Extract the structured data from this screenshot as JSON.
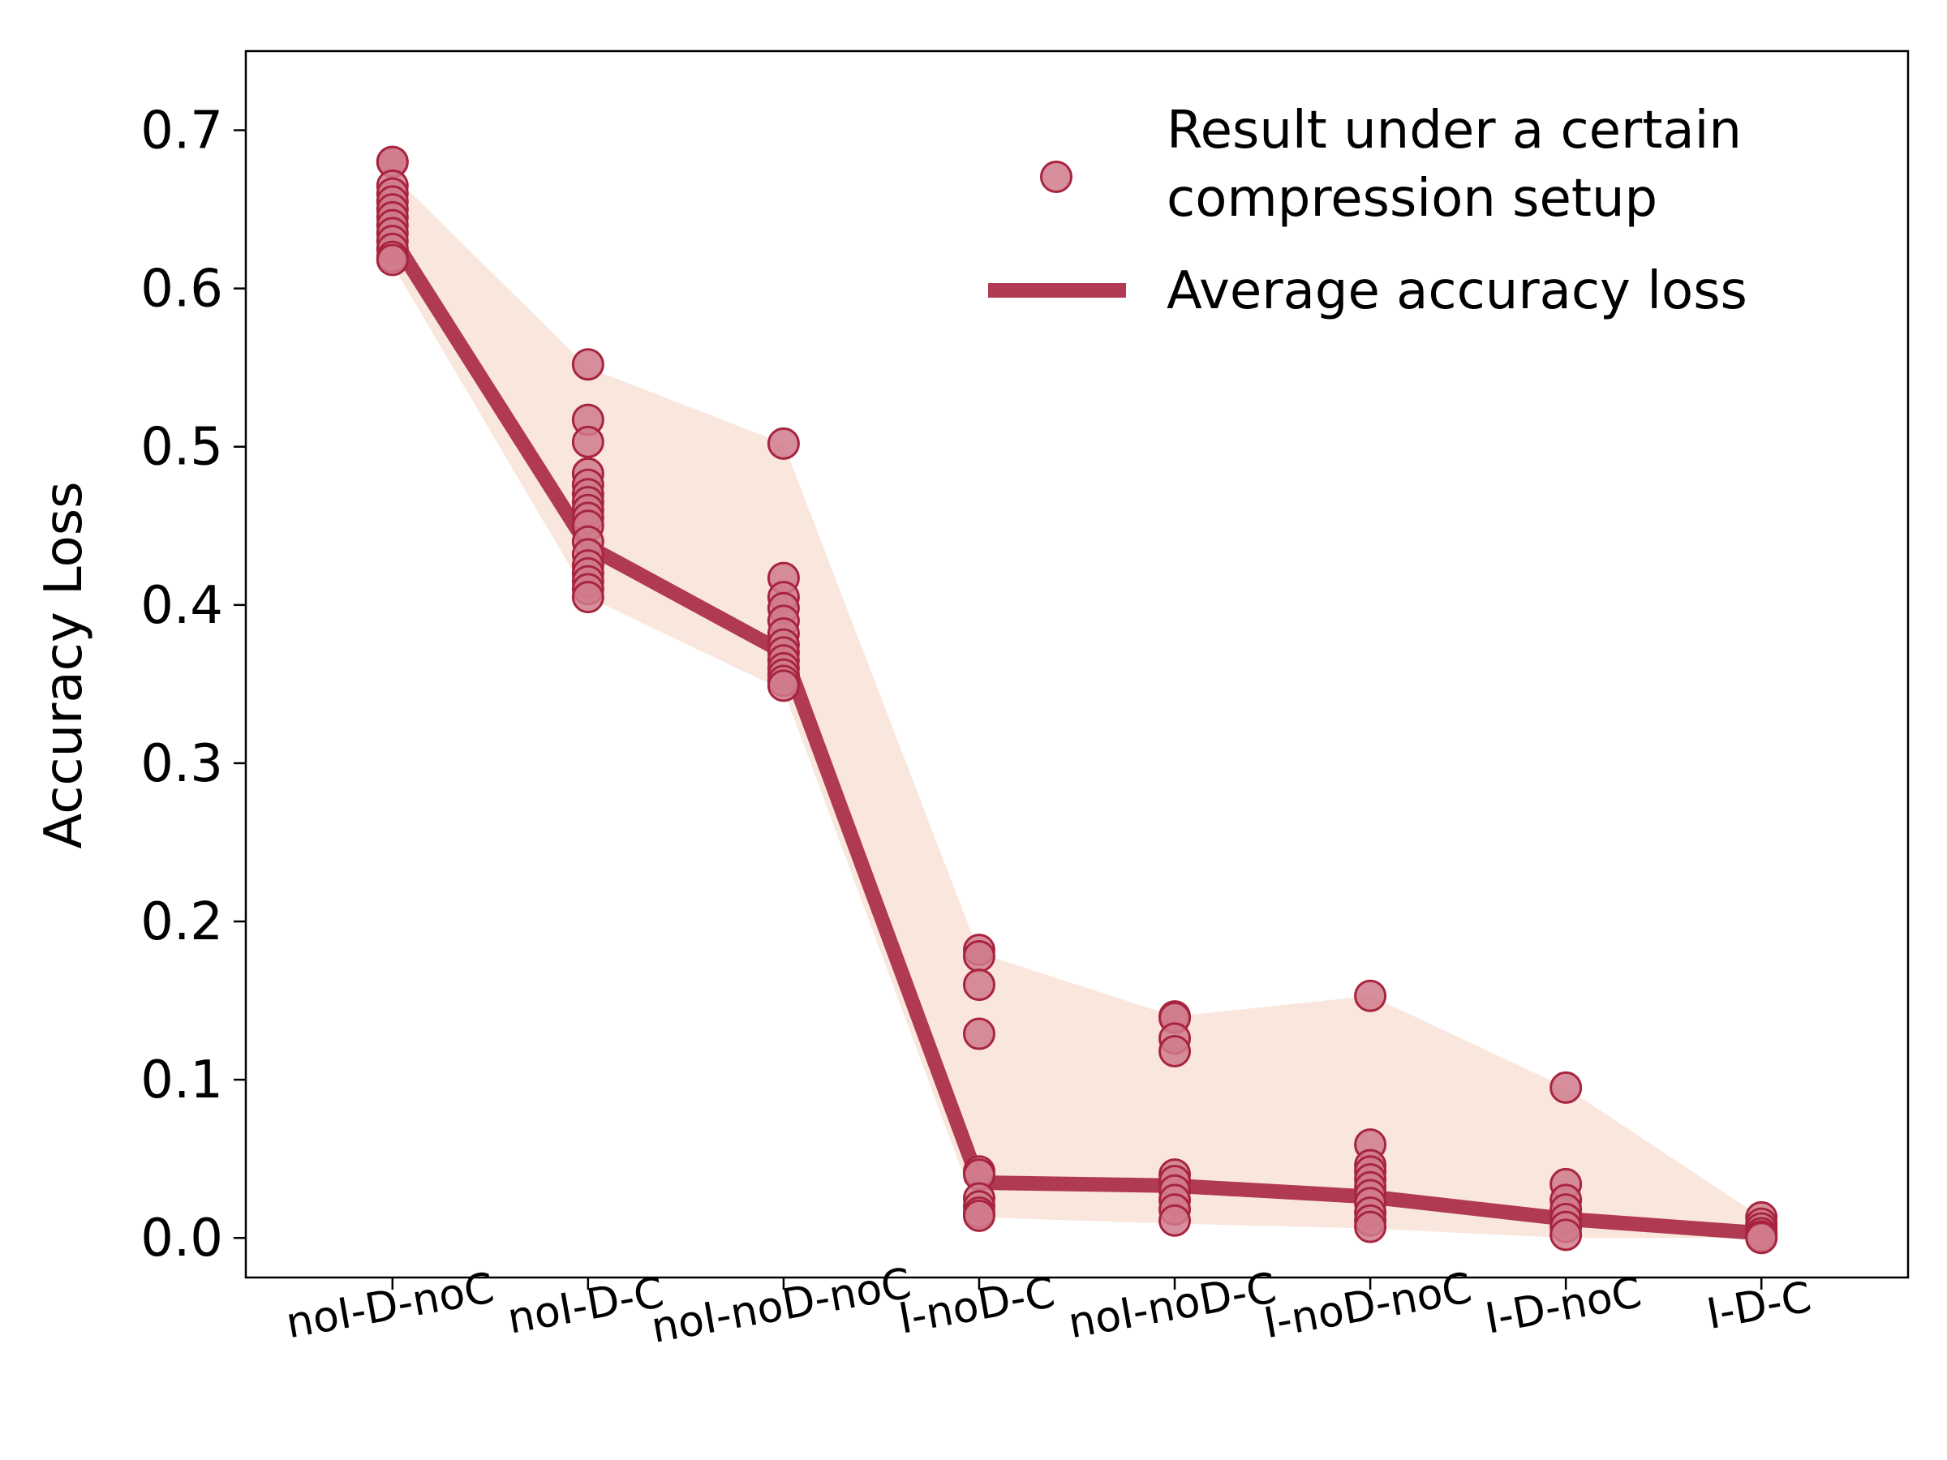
{
  "colors": {
    "line": "#B03A52",
    "marker_fill": "#D07A8C",
    "marker_edge": "#A8243E",
    "band": "#F9E6DD",
    "axis": "#000000"
  },
  "chart_data": {
    "type": "line",
    "title": "",
    "xlabel": "",
    "ylabel": "Accuracy Loss",
    "ylim": [
      -0.025,
      0.75
    ],
    "yticks": [
      0.0,
      0.1,
      0.2,
      0.3,
      0.4,
      0.5,
      0.6,
      0.7
    ],
    "ytick_labels": [
      "0.0",
      "0.1",
      "0.2",
      "0.3",
      "0.4",
      "0.5",
      "0.6",
      "0.7"
    ],
    "grid": false,
    "legend_position": "top-right",
    "categories": [
      "noI-D-noC",
      "noI-D-C",
      "noI-noD-noC",
      "I-noD-C",
      "noI-noD-C",
      "I-noD-noC",
      "I-D-noC",
      "I-D-C"
    ],
    "series": [
      {
        "name": "Average accuracy loss",
        "kind": "line",
        "values": [
          0.632,
          0.437,
          0.37,
          0.035,
          0.033,
          0.026,
          0.012,
          0.003
        ]
      },
      {
        "name": "Result under a certain compression setup",
        "kind": "scatter",
        "points": [
          [
            0.68,
            0.68,
            0.665,
            0.66,
            0.655,
            0.65,
            0.645,
            0.64,
            0.635,
            0.63,
            0.625,
            0.62,
            0.618
          ],
          [
            0.552,
            0.517,
            0.503,
            0.483,
            0.476,
            0.47,
            0.465,
            0.46,
            0.455,
            0.45,
            0.44,
            0.432,
            0.425,
            0.42,
            0.415,
            0.41,
            0.405
          ],
          [
            0.502,
            0.417,
            0.405,
            0.398,
            0.39,
            0.382,
            0.375,
            0.37,
            0.365,
            0.36,
            0.356,
            0.352,
            0.349
          ],
          [
            0.182,
            0.178,
            0.16,
            0.129,
            0.042,
            0.04,
            0.025,
            0.02,
            0.016,
            0.014
          ],
          [
            0.14,
            0.139,
            0.126,
            0.118,
            0.04,
            0.036,
            0.03,
            0.024,
            0.018,
            0.011
          ],
          [
            0.153,
            0.059,
            0.046,
            0.042,
            0.037,
            0.032,
            0.027,
            0.022,
            0.016,
            0.011,
            0.007
          ],
          [
            0.095,
            0.034,
            0.024,
            0.018,
            0.012,
            0.007,
            0.002
          ],
          [
            0.013,
            0.009,
            0.006,
            0.003,
            0.001,
            0.0
          ]
        ]
      }
    ],
    "band": {
      "upper": [
        0.672,
        0.55,
        0.502,
        0.18,
        0.14,
        0.153,
        0.095,
        0.013
      ],
      "lower": [
        0.615,
        0.405,
        0.346,
        0.013,
        0.009,
        0.006,
        0.0,
        0.0
      ]
    }
  },
  "legend": {
    "scatter_label_line1": "Result under a certain",
    "scatter_label_line2": "compression setup",
    "line_label": "Average accuracy loss"
  }
}
